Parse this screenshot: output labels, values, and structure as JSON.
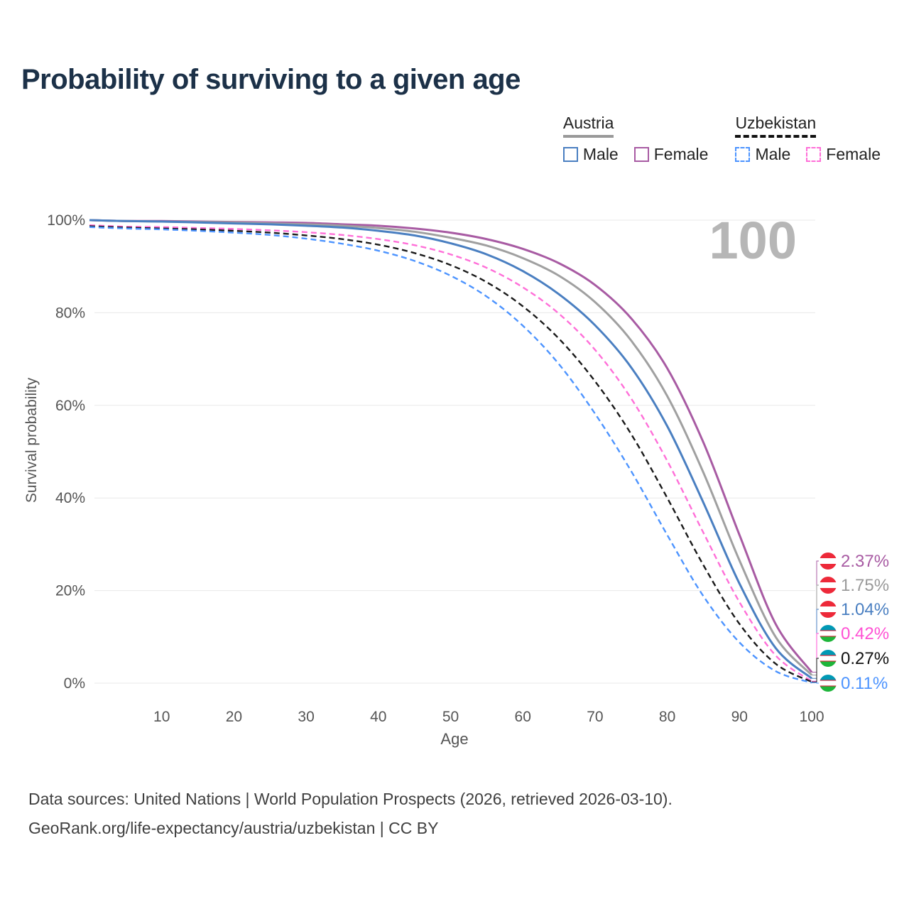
{
  "page": {
    "title": "Probability of surviving to a given age",
    "footer_line1": "Data sources: United Nations | World Population Prospects (2026, retrieved 2026-03-10).",
    "footer_line2": "GeoRank.org/life-expectancy/austria/uzbekistan | CC BY"
  },
  "legend": {
    "groups": [
      {
        "name": "Austria",
        "style": "solid",
        "items": [
          {
            "label": "Male",
            "color": "#4a7fc1"
          },
          {
            "label": "Female",
            "color": "#a85ba3"
          }
        ]
      },
      {
        "name": "Uzbekistan",
        "style": "dashed",
        "items": [
          {
            "label": "Male",
            "color": "#4d94ff"
          },
          {
            "label": "Female",
            "color": "#ff6fd8"
          }
        ]
      }
    ]
  },
  "flags": {
    "Austria": [
      [
        0.3333,
        "#ed2939"
      ],
      [
        0.3334,
        "#ffffff"
      ],
      [
        0.3333,
        "#ed2939"
      ]
    ],
    "Uzbekistan": [
      [
        0.31,
        "#0099b5"
      ],
      [
        0.045,
        "#ce1126"
      ],
      [
        0.29,
        "#ffffff"
      ],
      [
        0.045,
        "#ce1126"
      ],
      [
        0.31,
        "#1eb53a"
      ]
    ]
  },
  "chart_data": {
    "type": "line",
    "title": "Probability of surviving to a given age",
    "xlabel": "Age",
    "ylabel": "Survival probability",
    "xlim": [
      0,
      100
    ],
    "ylim": [
      0,
      100
    ],
    "x_ticks": [
      10,
      20,
      30,
      40,
      50,
      60,
      70,
      80,
      90,
      100
    ],
    "y_ticks": [
      0,
      20,
      40,
      60,
      80,
      100
    ],
    "y_tick_suffix": "%",
    "grid": "horizontal",
    "legend_position": "top-right",
    "hover_age": "100",
    "x": [
      0,
      5,
      10,
      15,
      20,
      25,
      30,
      35,
      40,
      45,
      50,
      55,
      60,
      65,
      70,
      75,
      80,
      85,
      90,
      95,
      100
    ],
    "series": [
      {
        "name": "Austria Female",
        "country": "Austria",
        "sex": "Female",
        "style": "solid",
        "color": "#a85ba3",
        "end_label": "2.37%",
        "label_color": "#a85ba3",
        "values": [
          100,
          99.8,
          99.8,
          99.7,
          99.6,
          99.5,
          99.4,
          99.1,
          98.8,
          98.2,
          97.3,
          95.9,
          93.8,
          90.7,
          86.0,
          78.8,
          68.0,
          52.0,
          32.0,
          12.8,
          2.37
        ]
      },
      {
        "name": "Austria Both sexes",
        "country": "Austria",
        "sex": "Both",
        "style": "solid",
        "color": "#a0a0a0",
        "end_label": "1.75%",
        "label_color": "#9a9a9a",
        "values": [
          100,
          99.8,
          99.7,
          99.6,
          99.5,
          99.3,
          99.1,
          98.8,
          98.3,
          97.5,
          96.2,
          94.5,
          91.8,
          88.0,
          82.3,
          74.0,
          62.0,
          45.5,
          26.5,
          10.0,
          1.75
        ]
      },
      {
        "name": "Austria Male",
        "country": "Austria",
        "sex": "Male",
        "style": "solid",
        "color": "#4a7fc1",
        "end_label": "1.04%",
        "label_color": "#4a7fc1",
        "values": [
          100,
          99.8,
          99.7,
          99.5,
          99.3,
          99.1,
          98.8,
          98.4,
          97.7,
          96.7,
          95.0,
          92.6,
          89.0,
          84.0,
          77.3,
          68.2,
          55.5,
          39.0,
          21.5,
          7.6,
          1.04
        ]
      },
      {
        "name": "Uzbekistan Female",
        "country": "Uzbekistan",
        "sex": "Female",
        "style": "dashed",
        "color": "#ff6fd8",
        "end_label": "0.42%",
        "label_color": "#ff52d4",
        "values": [
          98.9,
          98.6,
          98.5,
          98.3,
          98.1,
          97.8,
          97.4,
          96.8,
          95.9,
          94.6,
          92.6,
          89.7,
          85.5,
          79.8,
          72.0,
          61.5,
          48.0,
          32.5,
          17.5,
          6.0,
          0.42
        ]
      },
      {
        "name": "Uzbekistan Both sexes",
        "country": "Uzbekistan",
        "sex": "Both",
        "style": "dashed",
        "color": "#1a1a1a",
        "end_label": "0.27%",
        "label_color": "#111111",
        "values": [
          98.7,
          98.4,
          98.2,
          98.0,
          97.7,
          97.3,
          96.7,
          95.9,
          94.7,
          92.9,
          90.3,
          86.6,
          81.4,
          74.4,
          65.2,
          53.8,
          40.0,
          25.5,
          12.8,
          4.2,
          0.27
        ]
      },
      {
        "name": "Uzbekistan Male",
        "country": "Uzbekistan",
        "sex": "Male",
        "style": "dashed",
        "color": "#4d94ff",
        "end_label": "0.11%",
        "label_color": "#4d94ff",
        "values": [
          98.5,
          98.2,
          98.0,
          97.7,
          97.3,
          96.8,
          96.0,
          94.9,
          93.4,
          91.2,
          88.0,
          83.5,
          77.2,
          68.9,
          58.2,
          45.8,
          32.0,
          18.8,
          8.8,
          2.6,
          0.11
        ]
      }
    ]
  }
}
